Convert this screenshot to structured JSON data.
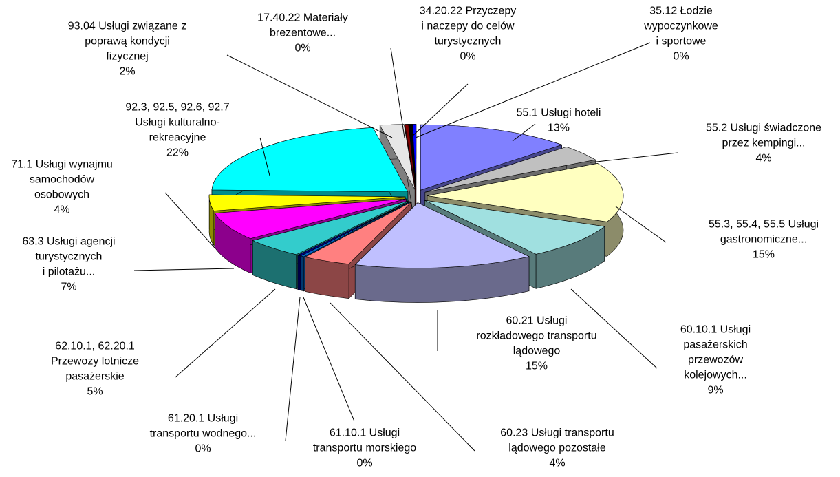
{
  "chart_data": {
    "type": "pie3d",
    "categories": [
      [
        "55.1 Usługi hoteli"
      ],
      [
        "55.2 Usługi świadczone",
        "przez kempingi..."
      ],
      [
        "55.3, 55.4, 55.5 Usługi",
        "gastronomiczne..."
      ],
      [
        "60.10.1 Usługi",
        "pasażerskich",
        "przewozów",
        "kolejowych..."
      ],
      [
        "60.21 Usługi",
        "rozkładowego transportu",
        "lądowego"
      ],
      [
        "60.23 Usługi transportu",
        "lądowego pozostałe"
      ],
      [
        "61.10.1 Usługi",
        "transportu morskiego"
      ],
      [
        "61.20.1 Usługi",
        "transportu wodnego..."
      ],
      [
        "62.10.1, 62.20.1",
        "Przewozy lotnicze",
        "pasażerskie"
      ],
      [
        "63.3 Usługi agencji",
        "turystycznych",
        "i pilotażu..."
      ],
      [
        "71.1 Usługi  wynajmu",
        "samochodów",
        "osobowych"
      ],
      [
        "92.3, 92.5, 92.6, 92.7",
        "Usługi kulturalno-",
        "rekreacyjne"
      ],
      [
        "93.04 Usługi związane z",
        "poprawą kondycji",
        "fizycznej"
      ],
      [
        "17.40.22 Materiały",
        "brezentowe..."
      ],
      [
        "34.20.22 Przyczepy",
        "i naczepy do celów",
        "turystycznych"
      ],
      [
        "35.12 Łodzie",
        "wypoczynkowe",
        "i sportowe"
      ]
    ],
    "values": [
      13,
      4,
      15,
      9,
      15,
      4,
      0.3,
      0.3,
      5,
      7,
      4,
      22,
      2,
      0.3,
      0.3,
      0.3
    ],
    "value_labels": [
      "13%",
      "4%",
      "15%",
      "9%",
      "15%",
      "4%",
      "0%",
      "0%",
      "5%",
      "7%",
      "4%",
      "22%",
      "2%",
      "0%",
      "0%",
      "0%"
    ],
    "colors": [
      "#8080ff",
      "#c0c0c0",
      "#ffffc0",
      "#a0e0e0",
      "#c0c0ff",
      "#ff8080",
      "#0066cc",
      "#000080",
      "#33cccc",
      "#ff00ff",
      "#ffff00",
      "#00ffff",
      "#e6e6e6",
      "#800000",
      "#000000",
      "#0000ff"
    ]
  }
}
